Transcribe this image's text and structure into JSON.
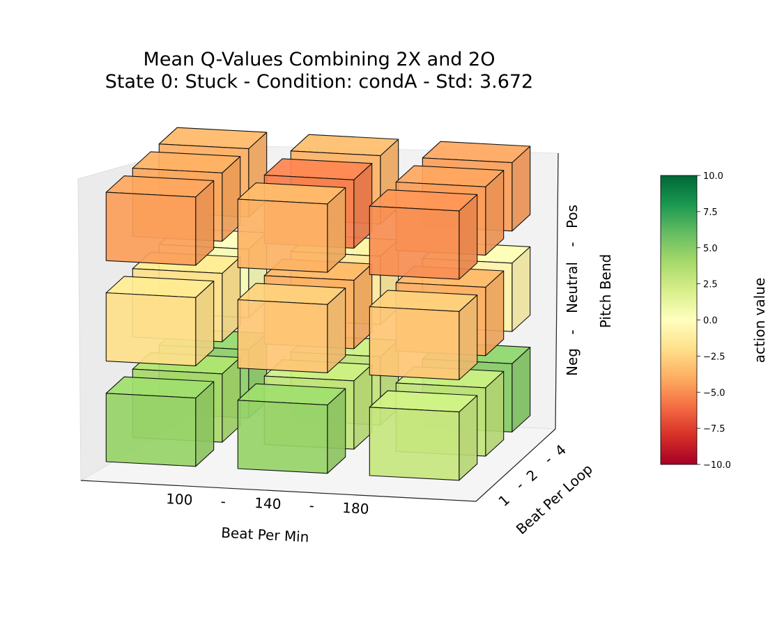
{
  "chart_data": {
    "type": "3d-bar",
    "title_line1": "Mean Q-Values Combining 2X and 2O",
    "title_line2": "State 0: Stuck  -  Condition: condA  -  Std: 3.672",
    "x_label": "Beat Per Min",
    "y_label": "Beat Per Loop",
    "z_label": "Pitch Bend",
    "x_ticks": [
      "100",
      "-",
      "140",
      "-",
      "180"
    ],
    "y_ticks": [
      "1",
      "-",
      "2",
      "-",
      "4"
    ],
    "z_ticks": [
      "Neg",
      "-",
      "Neutral",
      "-",
      "Pos"
    ],
    "colorbar": {
      "label": "action value",
      "min": -10.0,
      "max": 10.0,
      "ticks": [
        "10.0",
        "7.5",
        "5.0",
        "2.5",
        "0.0",
        "−2.5",
        "−5.0",
        "−7.5",
        "−10.0"
      ],
      "colors": [
        "#a50026",
        "#d73027",
        "#f46d43",
        "#fdae61",
        "#fee08b",
        "#ffffbf",
        "#d9ef8b",
        "#a6d96a",
        "#66bd63",
        "#1a9850",
        "#006837"
      ]
    },
    "grid": false,
    "axes": {
      "x": [
        "100",
        "140",
        "180"
      ],
      "y": [
        "1",
        "2",
        "4"
      ],
      "z": [
        "Neg",
        "Neutral",
        "Pos"
      ]
    },
    "values": [
      {
        "bpm": "100",
        "bpl": "1",
        "pitch": "Neg",
        "value": 4.5
      },
      {
        "bpm": "100",
        "bpl": "2",
        "pitch": "Neg",
        "value": 4.0
      },
      {
        "bpm": "100",
        "bpl": "4",
        "pitch": "Neg",
        "value": 4.8
      },
      {
        "bpm": "140",
        "bpl": "1",
        "pitch": "Neg",
        "value": 4.5
      },
      {
        "bpm": "140",
        "bpl": "2",
        "pitch": "Neg",
        "value": 3.0
      },
      {
        "bpm": "140",
        "bpl": "4",
        "pitch": "Neg",
        "value": 3.0
      },
      {
        "bpm": "180",
        "bpl": "1",
        "pitch": "Neg",
        "value": 2.8
      },
      {
        "bpm": "180",
        "bpl": "2",
        "pitch": "Neg",
        "value": 3.0
      },
      {
        "bpm": "180",
        "bpl": "4",
        "pitch": "Neg",
        "value": 5.0
      },
      {
        "bpm": "100",
        "bpl": "1",
        "pitch": "Neutral",
        "value": -2.0
      },
      {
        "bpm": "100",
        "bpl": "2",
        "pitch": "Neutral",
        "value": -2.0
      },
      {
        "bpm": "100",
        "bpl": "4",
        "pitch": "Neutral",
        "value": 0.5
      },
      {
        "bpm": "140",
        "bpl": "1",
        "pitch": "Neutral",
        "value": -3.0
      },
      {
        "bpm": "140",
        "bpl": "2",
        "pitch": "Neutral",
        "value": -4.0
      },
      {
        "bpm": "140",
        "bpl": "4",
        "pitch": "Neutral",
        "value": -1.5
      },
      {
        "bpm": "180",
        "bpl": "1",
        "pitch": "Neutral",
        "value": -3.0
      },
      {
        "bpm": "180",
        "bpl": "2",
        "pitch": "Neutral",
        "value": -4.0
      },
      {
        "bpm": "180",
        "bpl": "4",
        "pitch": "Neutral",
        "value": -0.8
      },
      {
        "bpm": "100",
        "bpl": "1",
        "pitch": "Pos",
        "value": -4.5
      },
      {
        "bpm": "100",
        "bpl": "2",
        "pitch": "Pos",
        "value": -4.2
      },
      {
        "bpm": "100",
        "bpl": "4",
        "pitch": "Pos",
        "value": -4.0
      },
      {
        "bpm": "140",
        "bpl": "1",
        "pitch": "Pos",
        "value": -3.8
      },
      {
        "bpm": "140",
        "bpl": "2",
        "pitch": "Pos",
        "value": -5.5
      },
      {
        "bpm": "140",
        "bpl": "4",
        "pitch": "Pos",
        "value": -3.8
      },
      {
        "bpm": "180",
        "bpl": "1",
        "pitch": "Pos",
        "value": -5.0
      },
      {
        "bpm": "180",
        "bpl": "2",
        "pitch": "Pos",
        "value": -4.5
      },
      {
        "bpm": "180",
        "bpl": "4",
        "pitch": "Pos",
        "value": -4.5
      }
    ]
  }
}
